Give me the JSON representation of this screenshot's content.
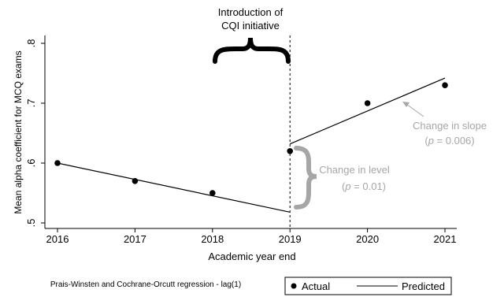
{
  "chart_data": {
    "type": "scatter",
    "xlabel": "Academic year end",
    "ylabel": "Mean alpha coefficient for MCQ exams",
    "xlim": [
      2016,
      2021
    ],
    "ylim": [
      0.5,
      0.8
    ],
    "x_ticks": [
      2016,
      2017,
      2018,
      2019,
      2020,
      2021
    ],
    "y_ticks": [
      0.5,
      0.6,
      0.7,
      0.8
    ],
    "y_tick_labels": [
      ".5",
      ".6",
      ".7",
      ".8"
    ],
    "series": [
      {
        "name": "Actual",
        "style": "points",
        "x": [
          2016,
          2017,
          2018,
          2019,
          2020,
          2021
        ],
        "y": [
          0.6,
          0.57,
          0.55,
          0.62,
          0.7,
          0.73
        ]
      },
      {
        "name": "Predicted",
        "style": "line",
        "segments": [
          {
            "x": [
              2016,
              2019
            ],
            "y": [
              0.6,
              0.518
            ]
          },
          {
            "x": [
              2019,
              2021
            ],
            "y": [
              0.632,
              0.742
            ]
          }
        ]
      }
    ],
    "intervention_x": 2019,
    "annotations": {
      "intervention_line1": "Introduction of",
      "intervention_line2": "CQI initiative",
      "slope_line1": "Change in slope",
      "slope_p_italic": "p",
      "slope_p_rest": " = 0.006)",
      "level_line1": "Change in level",
      "level_p_italic": "p",
      "level_p_rest": " = 0.01)",
      "open_paren": "("
    },
    "note": "Prais-Winsten and Cochrane-Orcutt regression - lag(1)",
    "legend_position": "bottom-right",
    "colors": {
      "points": "#000000",
      "line": "#000000",
      "annotation_grey": "#a6a6a6"
    }
  }
}
